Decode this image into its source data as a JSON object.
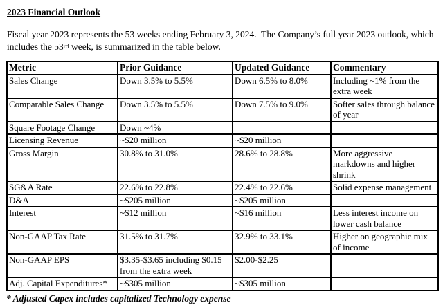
{
  "document": {
    "title": "2023 Financial Outlook",
    "intro": {
      "part1": "Fiscal year 2023 represents the 53 weeks ending February 3, 2024.  The Company’s full year 2023 outlook, which includes the 53",
      "ordinal": "rd",
      "part2": " week, is summarized in the table below."
    },
    "footnote": "* Adjusted Capex includes capitalized Technology expense"
  },
  "table": {
    "headers": [
      "Metric",
      "Prior Guidance",
      "Updated Guidance",
      "Commentary"
    ],
    "rows": [
      {
        "metric": "Sales Change",
        "prior": "Down 3.5% to 5.5%",
        "updated": "Down 6.5% to 8.0%",
        "commentary": "Including ~1% from the extra week"
      },
      {
        "metric": "Comparable Sales Change",
        "prior": "Down 3.5% to 5.5%",
        "updated": "Down 7.5% to 9.0%",
        "commentary": "Softer sales through balance of year"
      },
      {
        "metric": "Square Footage Change",
        "prior": "Down ~4%",
        "updated": "",
        "commentary": ""
      },
      {
        "metric": "Licensing Revenue",
        "prior": "~$20 million",
        "updated": "~$20 million",
        "commentary": ""
      },
      {
        "metric": "Gross Margin",
        "prior": "30.8% to 31.0%",
        "updated": "28.6% to 28.8%",
        "commentary": "More aggressive markdowns and higher shrink"
      },
      {
        "metric": "SG&A Rate",
        "prior": "22.6% to 22.8%",
        "updated": "22.4% to 22.6%",
        "commentary": "Solid expense management"
      },
      {
        "metric": "D&A",
        "prior": "~$205 million",
        "updated": "~$205 million",
        "commentary": ""
      },
      {
        "metric": "Interest",
        "prior": "~$12 million",
        "updated": "~$16 million",
        "commentary": "Less interest income on lower cash balance"
      },
      {
        "metric": "Non-GAAP Tax Rate",
        "prior": "31.5% to 31.7%",
        "updated": "32.9% to 33.1%",
        "commentary": "Higher on geographic mix of income"
      },
      {
        "metric": "Non-GAAP EPS",
        "prior": "$3.35-$3.65 including $0.15 from the extra week",
        "updated": "$2.00-$2.25",
        "commentary": ""
      },
      {
        "metric": "Adj. Capital Expenditures*",
        "prior": "~$305 million",
        "updated": "~$305 million",
        "commentary": ""
      }
    ]
  }
}
